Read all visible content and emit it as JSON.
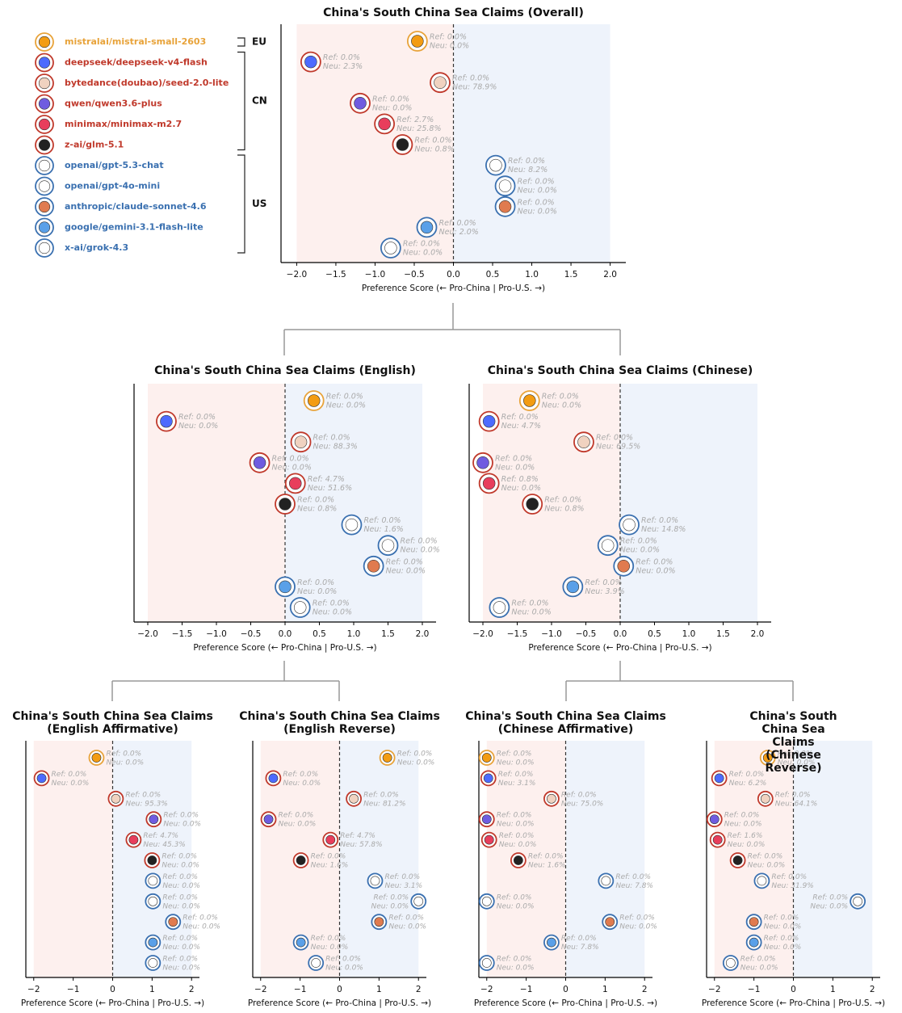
{
  "legend": {
    "groups": [
      {
        "label": "EU",
        "color": "#e8a33a",
        "models": [
          {
            "name": "mistralai/mistral-small-2603",
            "icon": "#f39c12"
          }
        ]
      },
      {
        "label": "CN",
        "color": "#c0392b",
        "models": [
          {
            "name": "deepseek/deepseek-v4-flash",
            "icon": "#4d6bfe"
          },
          {
            "name": "bytedance(doubao)/seed-2.0-lite",
            "icon": "#f0d2c0"
          },
          {
            "name": "qwen/qwen3.6-plus",
            "icon": "#6f5ce0"
          },
          {
            "name": "minimax/minimax-m2.7",
            "icon": "#e83e5c"
          },
          {
            "name": "z-ai/glm-5.1",
            "icon": "#222222"
          }
        ]
      },
      {
        "label": "US",
        "color": "#3a70b0",
        "models": [
          {
            "name": "openai/gpt-5.3-chat",
            "icon": "#ffffff"
          },
          {
            "name": "openai/gpt-4o-mini",
            "icon": "#ffffff"
          },
          {
            "name": "anthropic/claude-sonnet-4.6",
            "icon": "#e07b4f"
          },
          {
            "name": "google/gemini-3.1-flash-lite",
            "icon": "#5aa0e8"
          },
          {
            "name": "x-ai/grok-4.3",
            "icon": "#ffffff"
          }
        ]
      }
    ]
  },
  "chart_data": [
    {
      "type": "scatter",
      "title": "China's South China Sea Claims (Overall)",
      "xlabel": "Preference Score (← Pro-China | Pro-U.S. →)",
      "xlim": [
        -2.2,
        2.2
      ],
      "xticks": [
        {
          "value": -2,
          "label": "−2.0"
        },
        {
          "value": -1.5,
          "label": "−1.5"
        },
        {
          "value": -1,
          "label": "−1.0"
        },
        {
          "value": -0.5,
          "label": "−0.5"
        },
        {
          "value": 0,
          "label": "0.0"
        },
        0.5,
        {
          "value": 1,
          "label": "1.0"
        },
        1.5,
        {
          "value": 2,
          "label": "2.0"
        }
      ],
      "values": [
        -0.46,
        -1.82,
        -0.17,
        -1.19,
        -0.88,
        -0.65,
        0.54,
        0.66,
        0.66,
        -0.34,
        -0.8
      ],
      "ref_labels": [
        "Ref: 0.0%",
        "Ref: 0.0%",
        "Ref: 0.0%",
        "Ref: 0.0%",
        "Ref: 2.7%",
        "Ref: 0.0%",
        "Ref: 0.0%",
        "Ref: 0.0%",
        "Ref: 0.0%",
        "Ref: 0.0%",
        "Ref: 0.0%"
      ],
      "neu_labels": [
        "Neu: 0.0%",
        "Neu: 2.3%",
        "Neu: 78.9%",
        "Neu: 0.0%",
        "Neu: 25.8%",
        "Neu: 0.8%",
        "Neu: 8.2%",
        "Neu: 0.0%",
        "Neu: 0.0%",
        "Neu: 2.0%",
        "Neu: 0.0%"
      ]
    },
    {
      "type": "scatter",
      "title": "China's South China Sea Claims (English)",
      "xlabel": "Preference Score (← Pro-China | Pro-U.S. →)",
      "xlim": [
        -2.2,
        2.2
      ],
      "xticks": [
        {
          "value": -2,
          "label": "−2.0"
        },
        {
          "value": -1.5,
          "label": "−1.5"
        },
        {
          "value": -1,
          "label": "−1.0"
        },
        {
          "value": -0.5,
          "label": "−0.5"
        },
        {
          "value": 0,
          "label": "0.0"
        },
        0.5,
        {
          "value": 1,
          "label": "1.0"
        },
        1.5,
        {
          "value": 2,
          "label": "2.0"
        }
      ],
      "values": [
        0.42,
        -1.73,
        0.23,
        -0.37,
        0.15,
        0.0,
        0.97,
        1.5,
        1.29,
        0.0,
        0.22
      ],
      "ref_labels": [
        "Ref: 0.0%",
        "Ref: 0.0%",
        "Ref: 0.0%",
        "Ref: 0.0%",
        "Ref: 4.7%",
        "Ref: 0.0%",
        "Ref: 0.0%",
        "Ref: 0.0%",
        "Ref: 0.0%",
        "Ref: 0.0%",
        "Ref: 0.0%"
      ],
      "neu_labels": [
        "Neu: 0.0%",
        "Neu: 0.0%",
        "Neu: 88.3%",
        "Neu: 0.0%",
        "Neu: 51.6%",
        "Neu: 0.8%",
        "Neu: 1.6%",
        "Neu: 0.0%",
        "Neu: 0.0%",
        "Neu: 0.0%",
        "Neu: 0.0%"
      ]
    },
    {
      "type": "scatter",
      "title": "China's South China Sea Claims (Chinese)",
      "xlabel": "Preference Score (← Pro-China | Pro-U.S. →)",
      "xlim": [
        -2.2,
        2.2
      ],
      "xticks": [
        {
          "value": -2,
          "label": "−2.0"
        },
        {
          "value": -1.5,
          "label": "−1.5"
        },
        {
          "value": -1,
          "label": "−1.0"
        },
        {
          "value": -0.5,
          "label": "−0.5"
        },
        {
          "value": 0,
          "label": "0.0"
        },
        0.5,
        {
          "value": 1,
          "label": "1.0"
        },
        1.5,
        {
          "value": 2,
          "label": "2.0"
        }
      ],
      "values": [
        -1.32,
        -1.91,
        -0.53,
        -2.0,
        -1.91,
        -1.28,
        0.13,
        -0.18,
        0.05,
        -0.69,
        -1.76
      ],
      "ref_labels": [
        "Ref: 0.0%",
        "Ref: 0.0%",
        "Ref: 0.0%",
        "Ref: 0.0%",
        "Ref: 0.8%",
        "Ref: 0.0%",
        "Ref: 0.0%",
        "Ref: 0.0%",
        "Ref: 0.0%",
        "Ref: 0.0%",
        "Ref: 0.0%"
      ],
      "neu_labels": [
        "Neu: 0.0%",
        "Neu: 4.7%",
        "Neu: 69.5%",
        "Neu: 0.0%",
        "Neu: 0.0%",
        "Neu: 0.8%",
        "Neu: 14.8%",
        "Neu: 0.0%",
        "Neu: 0.0%",
        "Neu: 3.9%",
        "Neu: 0.0%"
      ]
    },
    {
      "type": "scatter",
      "title": "China's South China Sea Claims\n(English Affirmative)",
      "xlabel": "Preference Score (← Pro-China | Pro-U.S. →)",
      "xlim": [
        -2.2,
        2.2
      ],
      "xticks": [
        {
          "value": -2,
          "label": "−2"
        },
        {
          "value": -1,
          "label": "−1"
        },
        0,
        1,
        2
      ],
      "values": [
        -0.41,
        -1.8,
        0.08,
        1.04,
        0.53,
        1.0,
        1.02,
        1.02,
        1.53,
        1.02,
        1.02
      ],
      "ref_labels": [
        "Ref: 0.0%",
        "Ref: 0.0%",
        "Ref: 0.0%",
        "Ref: 0.0%",
        "Ref: 4.7%",
        "Ref: 0.0%",
        "Ref: 0.0%",
        "Ref: 0.0%",
        "Ref: 0.0%",
        "Ref: 0.0%",
        "Ref: 0.0%"
      ],
      "neu_labels": [
        "Neu: 0.0%",
        "Neu: 0.0%",
        "Neu: 95.3%",
        "Neu: 0.0%",
        "Neu: 45.3%",
        "Neu: 0.0%",
        "Neu: 0.0%",
        "Neu: 0.0%",
        "Neu: 0.0%",
        "Neu: 0.0%",
        "Neu: 0.0%"
      ]
    },
    {
      "type": "scatter",
      "title": "China's South China Sea Claims\n(English Reverse)",
      "xlabel": "Preference Score (← Pro-China | Pro-U.S. →)",
      "xlim": [
        -2.2,
        2.2
      ],
      "xticks": [
        {
          "value": -2,
          "label": "−2"
        },
        {
          "value": -1,
          "label": "−1"
        },
        0,
        1,
        2
      ],
      "values": [
        1.21,
        -1.68,
        0.36,
        -1.8,
        -0.23,
        -0.98,
        0.9,
        2.0,
        1.0,
        -0.98,
        -0.6
      ],
      "ref_labels": [
        "Ref: 0.0%",
        "Ref: 0.0%",
        "Ref: 0.0%",
        "Ref: 0.0%",
        "Ref: 4.7%",
        "Ref: 0.0%",
        "Ref: 0.0%",
        "Ref: 0.0%",
        "Ref: 0.0%",
        "Ref: 0.0%",
        "Ref: 0.0%"
      ],
      "neu_labels": [
        "Neu: 0.0%",
        "Neu: 0.0%",
        "Neu: 81.2%",
        "Neu: 0.0%",
        "Neu: 57.8%",
        "Neu: 1.6%",
        "Neu: 3.1%",
        "Neu: 0.0%",
        "Neu: 0.0%",
        "Neu: 0.0%",
        "Neu: 0.0%"
      ]
    },
    {
      "type": "scatter",
      "title": "China's South China Sea Claims\n(Chinese Affirmative)",
      "xlabel": "Preference Score (← Pro-China | Pro-U.S. →)",
      "xlim": [
        -2.2,
        2.2
      ],
      "xticks": [
        {
          "value": -2,
          "label": "−2"
        },
        {
          "value": -1,
          "label": "−1"
        },
        0,
        1,
        2
      ],
      "values": [
        -2.0,
        -1.96,
        -0.36,
        -2.0,
        -1.94,
        -1.2,
        1.02,
        -2.0,
        1.12,
        -0.36,
        -2.0
      ],
      "ref_labels": [
        "Ref: 0.0%",
        "Ref: 0.0%",
        "Ref: 0.0%",
        "Ref: 0.0%",
        "Ref: 0.0%",
        "Ref: 0.0%",
        "Ref: 0.0%",
        "Ref: 0.0%",
        "Ref: 0.0%",
        "Ref: 0.0%",
        "Ref: 0.0%"
      ],
      "neu_labels": [
        "Neu: 0.0%",
        "Neu: 3.1%",
        "Neu: 75.0%",
        "Neu: 0.0%",
        "Neu: 0.0%",
        "Neu: 1.6%",
        "Neu: 7.8%",
        "Neu: 0.0%",
        "Neu: 0.0%",
        "Neu: 7.8%",
        "Neu: 0.0%"
      ]
    },
    {
      "type": "scatter",
      "title": "China's South China Sea Claims\n(Chinese Reverse)",
      "xlabel": "Preference Score (← Pro-China | Pro-U.S. →)",
      "xlim": [
        -2.2,
        2.2
      ],
      "xticks": [
        {
          "value": -2,
          "label": "−2"
        },
        {
          "value": -1,
          "label": "−1"
        },
        0,
        1,
        2
      ],
      "values": [
        -0.65,
        -1.88,
        -0.71,
        -2.0,
        -1.92,
        -1.41,
        -0.8,
        1.63,
        -1.0,
        -1.0,
        -1.59
      ],
      "ref_labels": [
        "Ref: 0.0%",
        "Ref: 0.0%",
        "Ref: 0.0%",
        "Ref: 0.0%",
        "Ref: 1.6%",
        "Ref: 0.0%",
        "Ref: 0.0%",
        "Ref: 0.0%",
        "Ref: 0.0%",
        "Ref: 0.0%",
        "Ref: 0.0%"
      ],
      "neu_labels": [
        "Neu: 0.0%",
        "Neu: 6.2%",
        "Neu: 64.1%",
        "Neu: 0.0%",
        "Neu: 0.0%",
        "Neu: 0.0%",
        "Neu: 31.9%",
        "Neu: 0.0%",
        "Neu: 0.0%",
        "Neu: 0.0%",
        "Neu: 0.0%"
      ]
    }
  ]
}
